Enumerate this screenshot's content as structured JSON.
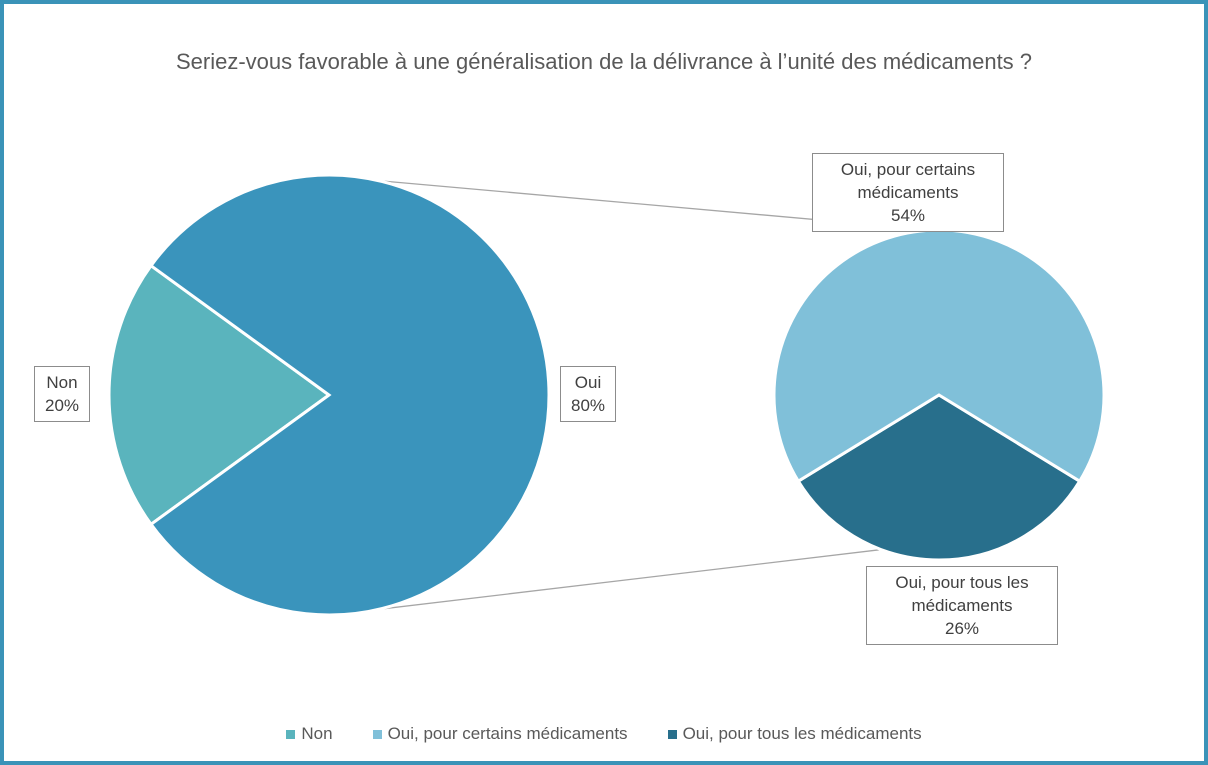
{
  "chart_data": {
    "type": "pie-of-pie",
    "title": "Seriez-vous favorable à une généralisation de la délivrance à l’unité des médicaments ?",
    "categories": [
      "Non",
      "Oui, pour certains médicaments",
      "Oui, pour tous les médicaments"
    ],
    "values": [
      20,
      54,
      26
    ],
    "value_labels": [
      "20%",
      "54%",
      "26%"
    ],
    "colors": [
      "#5ab4bd",
      "#80c0d9",
      "#286f8c"
    ],
    "other_label": "Oui",
    "other_value": 80,
    "other_value_label": "80%",
    "other_color": "#3a94bc",
    "legend": "bottom"
  }
}
